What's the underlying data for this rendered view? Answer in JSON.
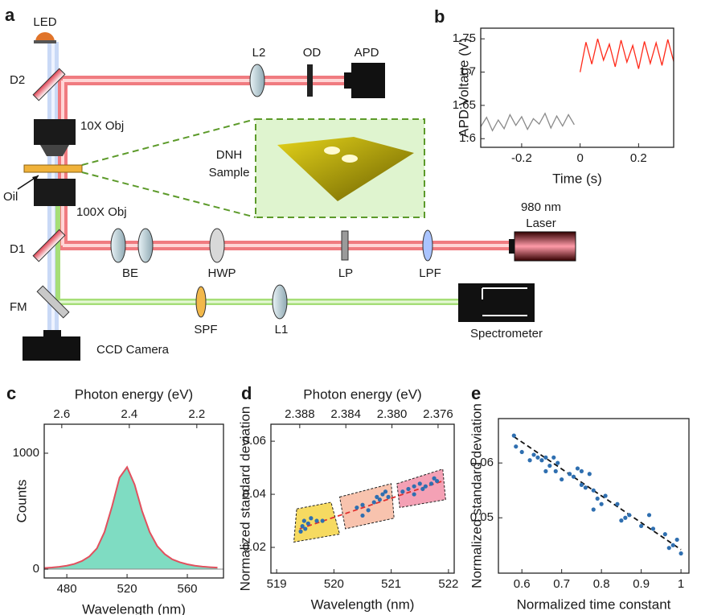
{
  "diagram": {
    "labels": [
      "a",
      "LED",
      "D2",
      "L2",
      "OD",
      "APD",
      "10X Obj",
      "DNH",
      "Sample",
      "Oil",
      "100X Obj",
      "980 nm",
      "Laser",
      "D1",
      "BE",
      "HWP",
      "LP",
      "LPF",
      "FM",
      "SPF",
      "L1",
      "Spectrometer",
      "CCD Camera"
    ]
  },
  "chart_data": [
    {
      "type": "line",
      "panel": "b",
      "xlabel": "Time (s)",
      "ylabel": "APD Voltage (V)",
      "x": [
        -0.34,
        -0.32,
        -0.3,
        -0.28,
        -0.26,
        -0.24,
        -0.22,
        -0.2,
        -0.18,
        -0.16,
        -0.14,
        -0.12,
        -0.1,
        -0.08,
        -0.06,
        -0.04,
        -0.02,
        0,
        0.02,
        0.04,
        0.06,
        0.08,
        0.1,
        0.12,
        0.14,
        0.16,
        0.18,
        0.2,
        0.22,
        0.24,
        0.26,
        0.28,
        0.3,
        0.32
      ],
      "series": [
        {
          "color": "#8a8a8a",
          "values": [
            1.618,
            1.632,
            1.612,
            1.628,
            1.615,
            1.636,
            1.62,
            1.633,
            1.614,
            1.63,
            1.622,
            1.638,
            1.616,
            1.634,
            1.619,
            1.636,
            1.621,
            null,
            null,
            null,
            null,
            null,
            null,
            null,
            null,
            null,
            null,
            null,
            null,
            null,
            null,
            null,
            null,
            null
          ]
        },
        {
          "color": "#ff2a1a",
          "values": [
            null,
            null,
            null,
            null,
            null,
            null,
            null,
            null,
            null,
            null,
            null,
            null,
            null,
            null,
            null,
            null,
            null,
            1.7,
            1.745,
            1.712,
            1.75,
            1.718,
            1.742,
            1.708,
            1.748,
            1.715,
            1.74,
            1.705,
            1.746,
            1.713,
            1.744,
            1.71,
            1.749,
            1.716
          ]
        }
      ],
      "xlim": [
        -0.34,
        0.32
      ],
      "xticks": [
        -0.2,
        0,
        0.2
      ],
      "ylim": [
        1.587,
        1.766
      ],
      "yticks": [
        1.6,
        1.65,
        1.7,
        1.75
      ]
    },
    {
      "type": "area",
      "panel": "c",
      "xlabel": "Wavelength (nm)",
      "ylabel": "Counts",
      "x2label": "Photon energy (eV)",
      "x": [
        465,
        470,
        475,
        480,
        485,
        490,
        495,
        500,
        505,
        510,
        515,
        520,
        525,
        530,
        535,
        540,
        545,
        550,
        555,
        560,
        565,
        570,
        575,
        580
      ],
      "series": [
        {
          "color": "#e2505e",
          "fill": "#7fdcc2",
          "values": [
            10,
            14,
            20,
            30,
            45,
            70,
            110,
            180,
            320,
            540,
            790,
            880,
            730,
            500,
            320,
            200,
            130,
            85,
            60,
            42,
            30,
            22,
            17,
            13
          ]
        }
      ],
      "xlim": [
        465,
        584
      ],
      "xticks": [
        480,
        520,
        560
      ],
      "ylim": [
        -76,
        1250
      ],
      "yticks": [
        0,
        1000
      ],
      "x2lim": [
        2.652,
        2.121
      ],
      "x2ticks": [
        2.6,
        2.4,
        2.2
      ]
    },
    {
      "type": "scatter",
      "panel": "d",
      "xlabel": "Wavelength (nm)",
      "ylabel": "Normalized standard deviation",
      "x2label": "Photon energy (eV)",
      "x": [
        519.42,
        519.45,
        519.48,
        519.5,
        519.55,
        519.6,
        519.7,
        519.8,
        520.4,
        520.5,
        520.6,
        520.7,
        520.75,
        520.8,
        520.85,
        520.9,
        520.95,
        520.5,
        521.2,
        521.3,
        521.4,
        521.5,
        521.55,
        521.6,
        521.7,
        521.75,
        521.8,
        521.4
      ],
      "series": [
        {
          "color": "#2f6fb0",
          "values": [
            0.026,
            0.028,
            0.03,
            0.027,
            0.029,
            0.031,
            0.03,
            0.03,
            0.035,
            0.036,
            0.034,
            0.037,
            0.039,
            0.038,
            0.04,
            0.041,
            0.039,
            0.032,
            0.041,
            0.042,
            0.043,
            0.044,
            0.042,
            0.043,
            0.044,
            0.046,
            0.045,
            0.04
          ]
        }
      ],
      "regions": [
        {
          "color": "#f5d445",
          "x": [
            519.35,
            519.95,
            520.1,
            519.3
          ],
          "y": [
            0.0345,
            0.037,
            0.025,
            0.022
          ]
        },
        {
          "color": "#f7b8a0",
          "x": [
            520.1,
            521.0,
            521.05,
            520.2
          ],
          "y": [
            0.039,
            0.044,
            0.031,
            0.027
          ]
        },
        {
          "color": "#f291a8",
          "x": [
            521.1,
            521.9,
            521.95,
            521.15
          ],
          "y": [
            0.044,
            0.0495,
            0.038,
            0.035
          ]
        }
      ],
      "fit": {
        "color": "#e03030",
        "x": [
          519.4,
          521.9
        ],
        "y": [
          0.027,
          0.045
        ]
      },
      "xlim": [
        518.9,
        522.1
      ],
      "xticks": [
        519,
        520,
        521,
        522
      ],
      "ylim": [
        0.0103,
        0.0664
      ],
      "yticks": [
        0.02,
        0.04,
        0.06
      ],
      "x2lim": [
        2.3905,
        2.3746
      ],
      "x2ticks": [
        2.388,
        2.384,
        {
          "value": 2.38,
          "label": "2.380"
        },
        2.376
      ]
    },
    {
      "type": "scatter",
      "panel": "e",
      "xlabel": "Normalized time constant",
      "ylabel": "Normalized standard deviation",
      "x": [
        0.58,
        0.585,
        0.6,
        0.63,
        0.64,
        0.65,
        0.66,
        0.67,
        0.68,
        0.685,
        0.69,
        0.7,
        0.72,
        0.73,
        0.74,
        0.75,
        0.76,
        0.77,
        0.78,
        0.79,
        0.8,
        0.81,
        0.78,
        0.84,
        0.85,
        0.86,
        0.87,
        0.9,
        0.92,
        0.93,
        0.96,
        0.98,
        0.99,
        1,
        0.97,
        0.62,
        0.66,
        0.75
      ],
      "series": [
        {
          "color": "#2f6fb0",
          "values": [
            0.065,
            0.063,
            0.062,
            0.0615,
            0.061,
            0.0605,
            0.061,
            0.0595,
            0.061,
            0.0585,
            0.06,
            0.057,
            0.058,
            0.0575,
            0.059,
            0.0585,
            0.0555,
            0.058,
            0.055,
            0.0535,
            0.0525,
            0.054,
            0.0515,
            0.0525,
            0.0495,
            0.05,
            0.0505,
            0.0485,
            0.0505,
            0.048,
            0.047,
            0.045,
            0.046,
            0.0435,
            0.0445,
            0.0605,
            0.0585,
            0.056
          ]
        }
      ],
      "fit": {
        "color": "#111111",
        "x": [
          0.58,
          1
        ],
        "y": [
          0.0648,
          0.0442
        ]
      },
      "xlim": [
        0.541,
        1.02
      ],
      "xticks": [
        0.6,
        0.7,
        0.8,
        0.9,
        1
      ],
      "ylim": [
        0.0399,
        0.0681
      ],
      "yticks": [
        0.05,
        0.06
      ]
    }
  ]
}
